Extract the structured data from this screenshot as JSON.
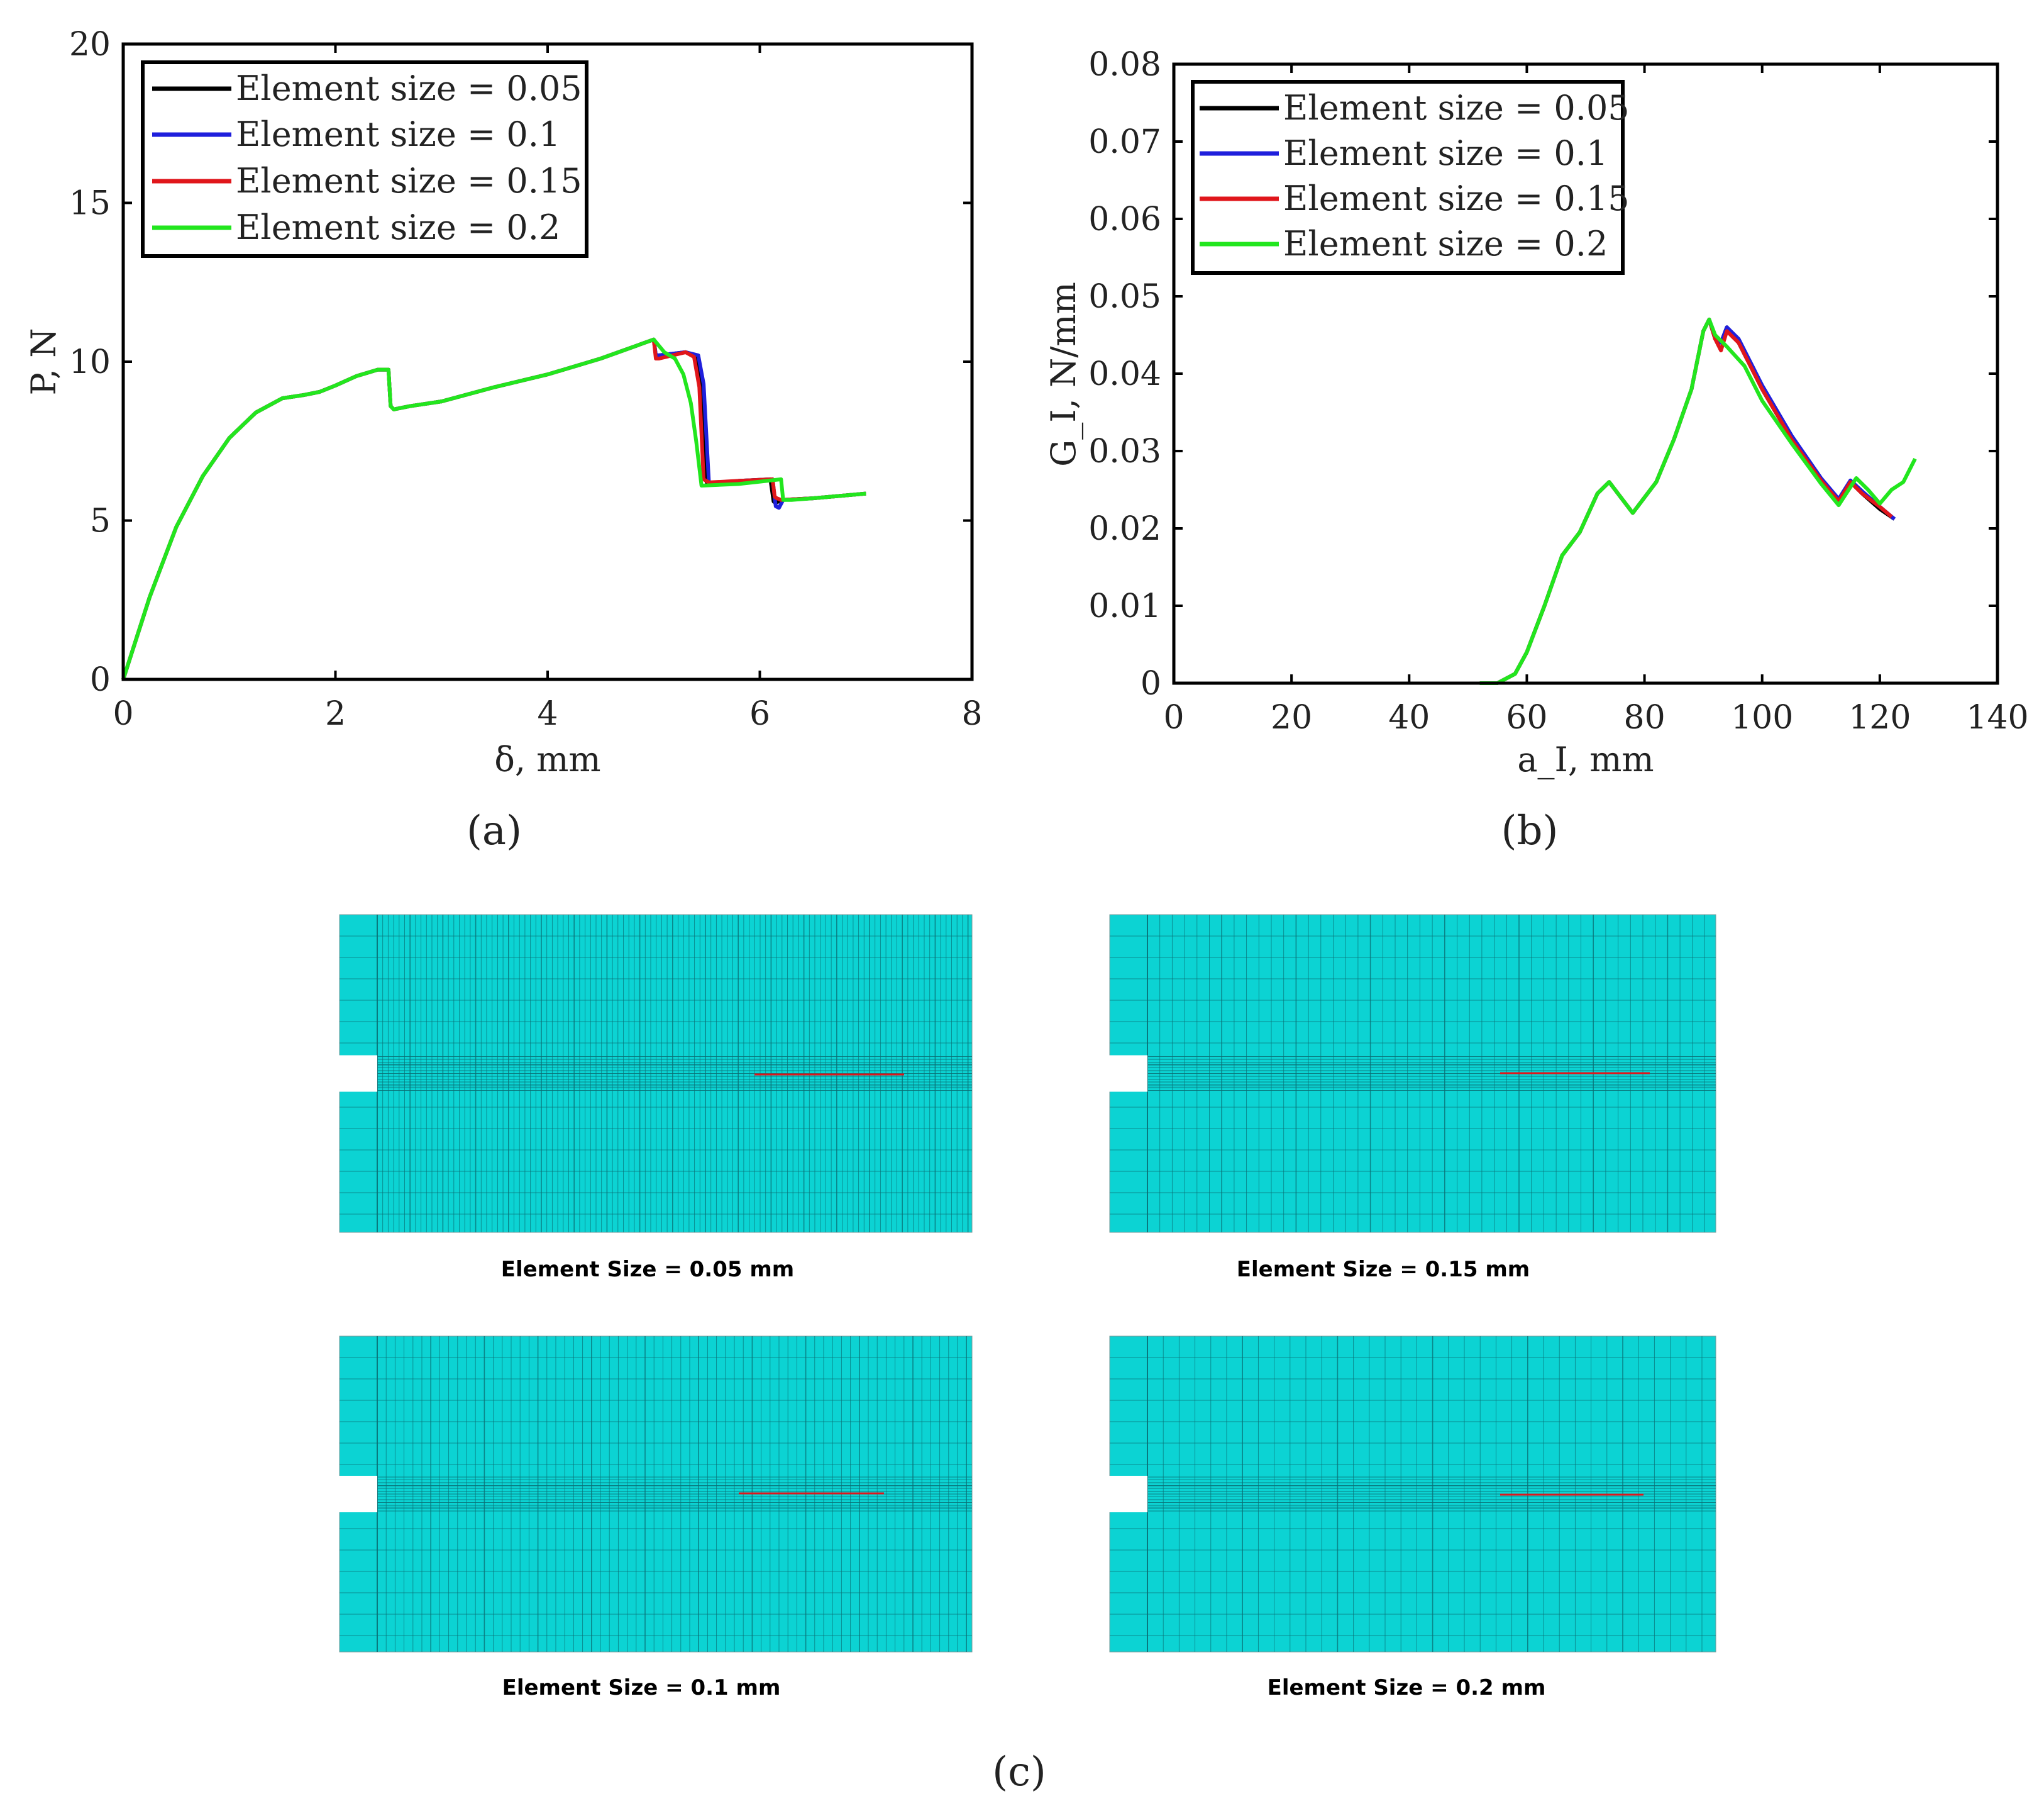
{
  "legend_labels": [
    "Element size = 0.05",
    "Element size = 0.1",
    "Element size = 0.15",
    "Element size = 0.2"
  ],
  "series_colors": [
    "#000000",
    "#1f1fdc",
    "#e0161b",
    "#22e61e"
  ],
  "captions": {
    "a": "(a)",
    "b": "(b)",
    "c": "(c)"
  },
  "mesh_panels": [
    {
      "label": "Element Size = 0.05 mm",
      "density": 0.05
    },
    {
      "label": "Element Size = 0.15 mm",
      "density": 0.15
    },
    {
      "label": "Element Size = 0.1 mm",
      "density": 0.1
    },
    {
      "label": "Element Size = 0.2 mm",
      "density": 0.2
    }
  ],
  "mesh_fill": "#0cd3d3",
  "crack_color": "#e0161b",
  "chart_data": [
    {
      "type": "line",
      "xlabel": "δ, mm",
      "ylabel": "P, N",
      "xlim": [
        0,
        8
      ],
      "ylim": [
        0,
        20
      ],
      "xticks": [
        "0",
        "2",
        "4",
        "6",
        "8"
      ],
      "yticks": [
        "0",
        "5",
        "10",
        "15",
        "20"
      ],
      "legend": "top-left",
      "series": [
        {
          "name": "Element size = 0.05",
          "x": [
            0,
            0.25,
            0.5,
            0.75,
            1,
            1.25,
            1.5,
            1.7,
            1.85,
            2,
            2.2,
            2.4,
            2.5,
            2.52,
            2.55,
            2.7,
            3,
            3.5,
            4,
            4.5,
            5,
            5.02,
            5.05,
            5.3,
            5.4,
            5.45,
            5.5,
            5.55,
            5.8,
            6.1,
            6.13,
            6.15,
            6.2,
            6.5,
            7
          ],
          "y": [
            0,
            2.6,
            4.8,
            6.4,
            7.6,
            8.4,
            8.85,
            8.95,
            9.05,
            9.25,
            9.55,
            9.75,
            9.75,
            8.6,
            8.5,
            8.6,
            8.75,
            9.2,
            9.6,
            10.1,
            10.7,
            10.2,
            10.2,
            10.3,
            10.2,
            9.3,
            6.2,
            6.15,
            6.25,
            6.3,
            5.6,
            5.55,
            5.65,
            5.7,
            5.85
          ]
        },
        {
          "name": "Element size = 0.1",
          "x": [
            0,
            0.25,
            0.5,
            0.75,
            1,
            1.25,
            1.5,
            1.7,
            1.85,
            2,
            2.2,
            2.4,
            2.5,
            2.52,
            2.55,
            2.7,
            3,
            3.5,
            4,
            4.5,
            5,
            5.02,
            5.05,
            5.3,
            5.42,
            5.47,
            5.52,
            5.57,
            5.8,
            6.12,
            6.15,
            6.18,
            6.22,
            6.5,
            7
          ],
          "y": [
            0,
            2.6,
            4.8,
            6.4,
            7.6,
            8.4,
            8.85,
            8.95,
            9.05,
            9.25,
            9.55,
            9.75,
            9.75,
            8.6,
            8.5,
            8.6,
            8.75,
            9.2,
            9.6,
            10.1,
            10.7,
            10.2,
            10.2,
            10.3,
            10.2,
            9.3,
            6.2,
            6.15,
            6.25,
            6.3,
            5.45,
            5.4,
            5.65,
            5.7,
            5.85
          ]
        },
        {
          "name": "Element size = 0.15",
          "x": [
            0,
            0.25,
            0.5,
            0.75,
            1,
            1.25,
            1.5,
            1.7,
            1.85,
            2,
            2.2,
            2.4,
            2.5,
            2.52,
            2.55,
            2.7,
            3,
            3.5,
            4,
            4.5,
            5,
            5.02,
            5.05,
            5.3,
            5.38,
            5.43,
            5.47,
            5.52,
            5.8,
            6.12,
            6.14,
            6.16,
            6.2,
            6.5,
            7
          ],
          "y": [
            0,
            2.6,
            4.8,
            6.4,
            7.6,
            8.4,
            8.85,
            8.95,
            9.05,
            9.25,
            9.55,
            9.75,
            9.75,
            8.6,
            8.5,
            8.6,
            8.75,
            9.2,
            9.6,
            10.1,
            10.7,
            10.1,
            10.1,
            10.3,
            10.15,
            9.2,
            6.3,
            6.2,
            6.25,
            6.3,
            5.75,
            5.7,
            5.65,
            5.7,
            5.85
          ]
        },
        {
          "name": "Element size = 0.2",
          "x": [
            0,
            0.25,
            0.5,
            0.75,
            1,
            1.25,
            1.5,
            1.7,
            1.85,
            2,
            2.2,
            2.4,
            2.5,
            2.52,
            2.55,
            2.7,
            3,
            3.5,
            4,
            4.5,
            5,
            5.1,
            5.2,
            5.28,
            5.35,
            5.4,
            5.45,
            5.8,
            6.2,
            6.22,
            6.3,
            6.5,
            7
          ],
          "y": [
            0,
            2.6,
            4.8,
            6.4,
            7.6,
            8.4,
            8.85,
            8.95,
            9.05,
            9.25,
            9.55,
            9.75,
            9.75,
            8.6,
            8.5,
            8.6,
            8.75,
            9.2,
            9.6,
            10.1,
            10.7,
            10.3,
            10.1,
            9.6,
            8.7,
            7.5,
            6.1,
            6.15,
            6.3,
            5.65,
            5.65,
            5.7,
            5.85
          ]
        }
      ]
    },
    {
      "type": "line",
      "xlabel": "a_I, mm",
      "ylabel": "G_I, N/mm",
      "xlim": [
        0,
        140
      ],
      "ylim": [
        0,
        0.08
      ],
      "xticks": [
        "0",
        "20",
        "40",
        "60",
        "80",
        "100",
        "120",
        "140"
      ],
      "yticks": [
        "0",
        "0.01",
        "0.02",
        "0.03",
        "0.04",
        "0.05",
        "0.06",
        "0.07",
        "0.08"
      ],
      "legend": "top-left",
      "series": [
        {
          "name": "Element size = 0.05",
          "x": [
            52,
            55,
            58,
            60,
            63,
            66,
            69,
            72,
            74,
            76,
            78,
            80,
            82,
            85,
            88,
            90,
            91,
            92,
            93,
            94,
            96,
            100,
            105,
            110,
            113,
            115,
            117,
            120,
            122.5
          ],
          "y": [
            0,
            0,
            0.0012,
            0.004,
            0.01,
            0.0165,
            0.0195,
            0.0245,
            0.026,
            0.024,
            0.022,
            0.024,
            0.026,
            0.0315,
            0.038,
            0.0455,
            0.047,
            0.0445,
            0.044,
            0.046,
            0.044,
            0.038,
            0.0315,
            0.026,
            0.0235,
            0.026,
            0.0245,
            0.0225,
            0.0212
          ]
        },
        {
          "name": "Element size = 0.1",
          "x": [
            52,
            55,
            58,
            60,
            63,
            66,
            69,
            72,
            74,
            76,
            78,
            80,
            82,
            85,
            88,
            90,
            91,
            92,
            93,
            94,
            96,
            100,
            105,
            110,
            113,
            115,
            117,
            120,
            122.5
          ],
          "y": [
            0,
            0,
            0.0012,
            0.004,
            0.01,
            0.0165,
            0.0195,
            0.0245,
            0.026,
            0.024,
            0.022,
            0.024,
            0.026,
            0.0315,
            0.038,
            0.0455,
            0.047,
            0.0445,
            0.044,
            0.046,
            0.0445,
            0.0385,
            0.032,
            0.0265,
            0.0238,
            0.0262,
            0.0248,
            0.0228,
            0.0212
          ]
        },
        {
          "name": "Element size = 0.15",
          "x": [
            52,
            55,
            58,
            60,
            63,
            66,
            69,
            72,
            74,
            76,
            78,
            80,
            82,
            85,
            88,
            90,
            91,
            92,
            93,
            94,
            96,
            100,
            105,
            110,
            113,
            115,
            117,
            120,
            122
          ],
          "y": [
            0,
            0,
            0.0012,
            0.004,
            0.01,
            0.0165,
            0.0195,
            0.0245,
            0.026,
            0.024,
            0.022,
            0.024,
            0.026,
            0.0315,
            0.038,
            0.0455,
            0.047,
            0.0445,
            0.043,
            0.0455,
            0.044,
            0.038,
            0.0315,
            0.0262,
            0.0235,
            0.026,
            0.0245,
            0.0228,
            0.0215
          ]
        },
        {
          "name": "Element size = 0.2",
          "x": [
            52,
            55,
            58,
            60,
            63,
            66,
            69,
            72,
            74,
            76,
            78,
            80,
            82,
            85,
            88,
            90,
            91,
            92,
            94,
            97,
            100,
            105,
            110,
            113,
            116,
            118,
            120,
            122,
            124,
            126
          ],
          "y": [
            0,
            0,
            0.0012,
            0.004,
            0.01,
            0.0165,
            0.0195,
            0.0245,
            0.026,
            0.024,
            0.022,
            0.024,
            0.026,
            0.0315,
            0.038,
            0.0455,
            0.047,
            0.045,
            0.0435,
            0.041,
            0.0365,
            0.031,
            0.0258,
            0.023,
            0.0265,
            0.025,
            0.0232,
            0.025,
            0.026,
            0.029
          ]
        }
      ]
    }
  ]
}
